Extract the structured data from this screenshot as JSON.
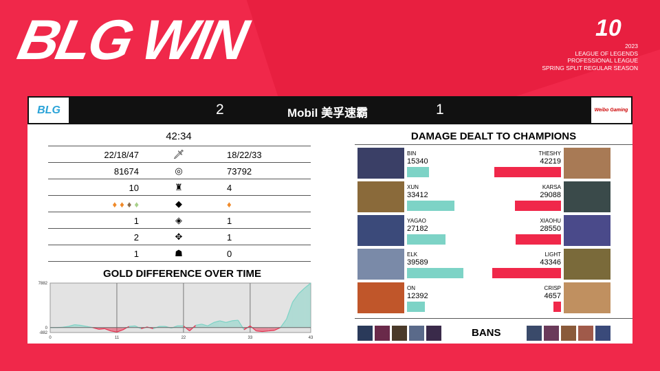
{
  "header": {
    "title": "BLG WIN",
    "league_logo": "10",
    "season_lines": [
      "2023",
      "LEAGUE OF LEGENDS",
      "PROFESSIONAL LEAGUE",
      "SPRING SPLIT REGULAR SEASON"
    ]
  },
  "scoreboard": {
    "left_team_logo": "BLG",
    "left_score": "2",
    "sponsor": "Mobil 美孚速霸",
    "right_score": "1",
    "right_team_logo": "Weibo Gaming"
  },
  "stats": {
    "duration": "42:34",
    "rows": [
      {
        "icon": "sword-icon",
        "left": "22/18/47",
        "right": "18/22/33"
      },
      {
        "icon": "gold-icon",
        "left": "81674",
        "right": "73792"
      },
      {
        "icon": "tower-icon",
        "left": "10",
        "right": "4"
      },
      {
        "icon": "dragon-icon",
        "left_icons": [
          "infernal",
          "infernal",
          "mountain",
          "cloud"
        ],
        "right_icons": [
          "infernal"
        ]
      },
      {
        "icon": "herald-icon",
        "left": "1",
        "right": "1"
      },
      {
        "icon": "baron-icon",
        "left": "2",
        "right": "1"
      },
      {
        "icon": "elder-icon",
        "left": "1",
        "right": "0"
      }
    ]
  },
  "gold_chart": {
    "title": "GOLD DIFFERENCE OVER TIME",
    "colors": {
      "positive": "#7dd3c6",
      "negative": "#e8304f"
    }
  },
  "chart_data": {
    "type": "area",
    "x_ticks": [
      "0",
      "11",
      "22",
      "33",
      "43"
    ],
    "y_ticks": [
      "7882",
      "0",
      "-882"
    ],
    "ylim": [
      -882,
      7882
    ],
    "xlim": [
      0,
      43
    ],
    "x": [
      0,
      1,
      2,
      3,
      4,
      5,
      6,
      7,
      8,
      9,
      10,
      11,
      12,
      13,
      14,
      15,
      16,
      17,
      18,
      19,
      20,
      21,
      22,
      23,
      24,
      25,
      26,
      27,
      28,
      29,
      30,
      31,
      32,
      33,
      34,
      35,
      36,
      37,
      38,
      39,
      40,
      41,
      42,
      43
    ],
    "values": [
      0,
      0,
      50,
      200,
      500,
      400,
      200,
      0,
      -300,
      -200,
      -600,
      -800,
      -400,
      200,
      300,
      -200,
      100,
      -200,
      200,
      200,
      -100,
      300,
      300,
      -600,
      400,
      600,
      300,
      900,
      1200,
      900,
      1200,
      1300,
      -400,
      300,
      -600,
      -700,
      -600,
      -500,
      0,
      1500,
      4500,
      6000,
      7000,
      7882
    ]
  },
  "damage": {
    "title": "DAMAGE  DEALT TO CHAMPIONS",
    "max": 43346,
    "left": [
      {
        "name": "BIN",
        "value": 15340,
        "color": "#3a3f66"
      },
      {
        "name": "XUN",
        "value": 33412,
        "color": "#8a6a3a"
      },
      {
        "name": "YAGAO",
        "value": 27182,
        "color": "#3b4a7a"
      },
      {
        "name": "ELK",
        "value": 39589,
        "color": "#7a8aa8"
      },
      {
        "name": "ON",
        "value": 12392,
        "color": "#c0562a"
      }
    ],
    "right": [
      {
        "name": "THESHY",
        "value": 42219,
        "color": "#a87a55"
      },
      {
        "name": "KARSA",
        "value": 29088,
        "color": "#3a4a4a"
      },
      {
        "name": "XIAOHU",
        "value": 28550,
        "color": "#4a4a8a"
      },
      {
        "name": "LIGHT",
        "value": 43346,
        "color": "#7a6a3a"
      },
      {
        "name": "CRISP",
        "value": 4657,
        "color": "#c09060"
      }
    ],
    "left_color": "#7dd3c6",
    "right_color": "#f0284a"
  },
  "bans": {
    "label": "BANS",
    "left": [
      "#2a3a5a",
      "#6a2a4a",
      "#4a3a2a",
      "#5a6a8a",
      "#3a2a4a"
    ],
    "right": [
      "#3a4a6a",
      "#6a3a5a",
      "#8a5a3a",
      "#a05a4a",
      "#3a4a7a"
    ]
  }
}
